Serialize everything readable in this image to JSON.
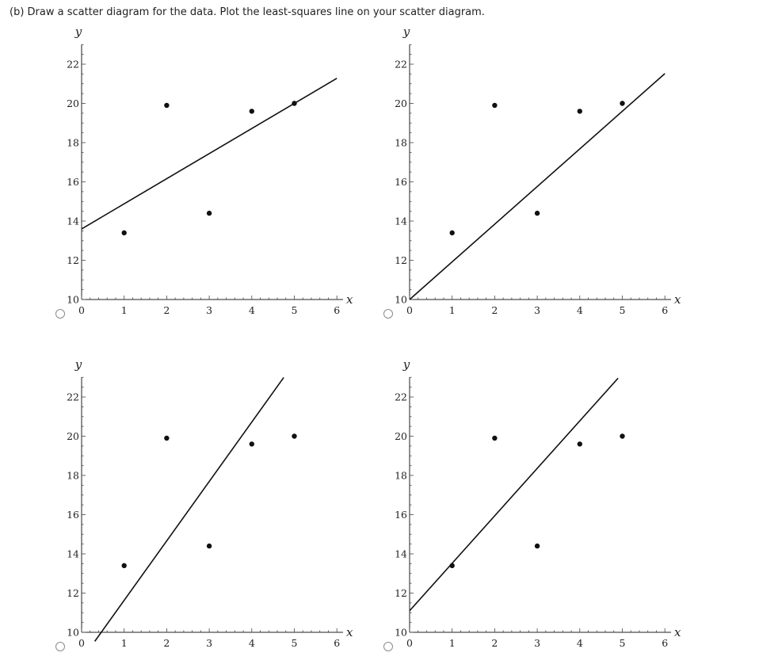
{
  "question": {
    "text": "(b) Draw a scatter diagram for the data. Plot the least-squares line on your scatter diagram."
  },
  "options": [
    {
      "id": "top-left",
      "chart_index": 0
    },
    {
      "id": "top-right",
      "chart_index": 1
    },
    {
      "id": "bottom-left",
      "chart_index": 2
    },
    {
      "id": "bottom-right",
      "chart_index": 3
    }
  ],
  "chart_data": [
    {
      "type": "scatter",
      "xlabel": "x",
      "ylabel": "y",
      "xlim": [
        0,
        6
      ],
      "ylim": [
        10,
        23
      ],
      "xticks": [
        "0",
        "1",
        "2",
        "3",
        "4",
        "5",
        "6"
      ],
      "yticks": [
        "10",
        "12",
        "14",
        "16",
        "18",
        "20",
        "22"
      ],
      "points": [
        {
          "x": 1,
          "y": 13.4
        },
        {
          "x": 2,
          "y": 19.9
        },
        {
          "x": 3,
          "y": 14.4
        },
        {
          "x": 4,
          "y": 19.6
        },
        {
          "x": 5,
          "y": 20.0
        }
      ],
      "line": {
        "intercept": 13.6,
        "slope": 1.28,
        "x_start": 0,
        "x_end": 6
      }
    },
    {
      "type": "scatter",
      "xlabel": "x",
      "ylabel": "y",
      "xlim": [
        0,
        6
      ],
      "ylim": [
        10,
        23
      ],
      "xticks": [
        "0",
        "1",
        "2",
        "3",
        "4",
        "5",
        "6"
      ],
      "yticks": [
        "10",
        "12",
        "14",
        "16",
        "18",
        "20",
        "22"
      ],
      "points": [
        {
          "x": 1,
          "y": 13.4
        },
        {
          "x": 2,
          "y": 19.9
        },
        {
          "x": 3,
          "y": 14.4
        },
        {
          "x": 4,
          "y": 19.6
        },
        {
          "x": 5,
          "y": 20.0
        }
      ],
      "line": {
        "intercept": 10.0,
        "slope": 1.92,
        "x_start": 0,
        "x_end": 6
      }
    },
    {
      "type": "scatter",
      "xlabel": "x",
      "ylabel": "y",
      "xlim": [
        0,
        6
      ],
      "ylim": [
        10,
        23
      ],
      "xticks": [
        "0",
        "1",
        "2",
        "3",
        "4",
        "5",
        "6"
      ],
      "yticks": [
        "10",
        "12",
        "14",
        "16",
        "18",
        "20",
        "22"
      ],
      "points": [
        {
          "x": 1,
          "y": 13.4
        },
        {
          "x": 2,
          "y": 19.9
        },
        {
          "x": 3,
          "y": 14.4
        },
        {
          "x": 4,
          "y": 19.6
        },
        {
          "x": 5,
          "y": 20.0
        }
      ],
      "line": {
        "intercept": 8.6,
        "slope": 3.03,
        "x_start": 0.31,
        "x_end": 4.75
      }
    },
    {
      "type": "scatter",
      "xlabel": "x",
      "ylabel": "y",
      "xlim": [
        0,
        6
      ],
      "ylim": [
        10,
        23
      ],
      "xticks": [
        "0",
        "1",
        "2",
        "3",
        "4",
        "5",
        "6"
      ],
      "yticks": [
        "10",
        "12",
        "14",
        "16",
        "18",
        "20",
        "22"
      ],
      "points": [
        {
          "x": 1,
          "y": 13.4
        },
        {
          "x": 2,
          "y": 19.9
        },
        {
          "x": 3,
          "y": 14.4
        },
        {
          "x": 4,
          "y": 19.6
        },
        {
          "x": 5,
          "y": 20.0
        }
      ],
      "line": {
        "intercept": 11.1,
        "slope": 2.42,
        "x_start": 0,
        "x_end": 4.9
      }
    }
  ]
}
